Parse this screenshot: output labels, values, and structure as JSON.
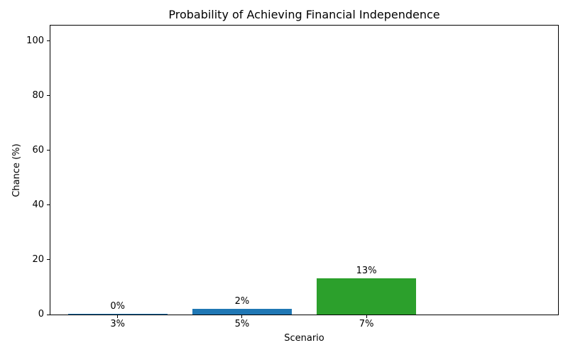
{
  "chart_data": {
    "type": "bar",
    "title": "Probability of Achieving Financial Independence",
    "xlabel": "Scenario",
    "ylabel": "Chance (%)",
    "categories": [
      "3%",
      "5%",
      "7%"
    ],
    "values": [
      0.3,
      2.0,
      13.2
    ],
    "bar_labels": [
      "0%",
      "2%",
      "13%"
    ],
    "bar_colors": [
      "#1f77b4",
      "#1f77b4",
      "#2ca02c"
    ],
    "yticks": [
      0,
      20,
      40,
      60,
      80,
      100
    ],
    "ytick_labels": [
      "0",
      "20",
      "40",
      "60",
      "80",
      "100"
    ],
    "ylim": [
      0,
      105.7
    ],
    "grid": false,
    "legend_position": "none",
    "axis_color": "#000000"
  }
}
